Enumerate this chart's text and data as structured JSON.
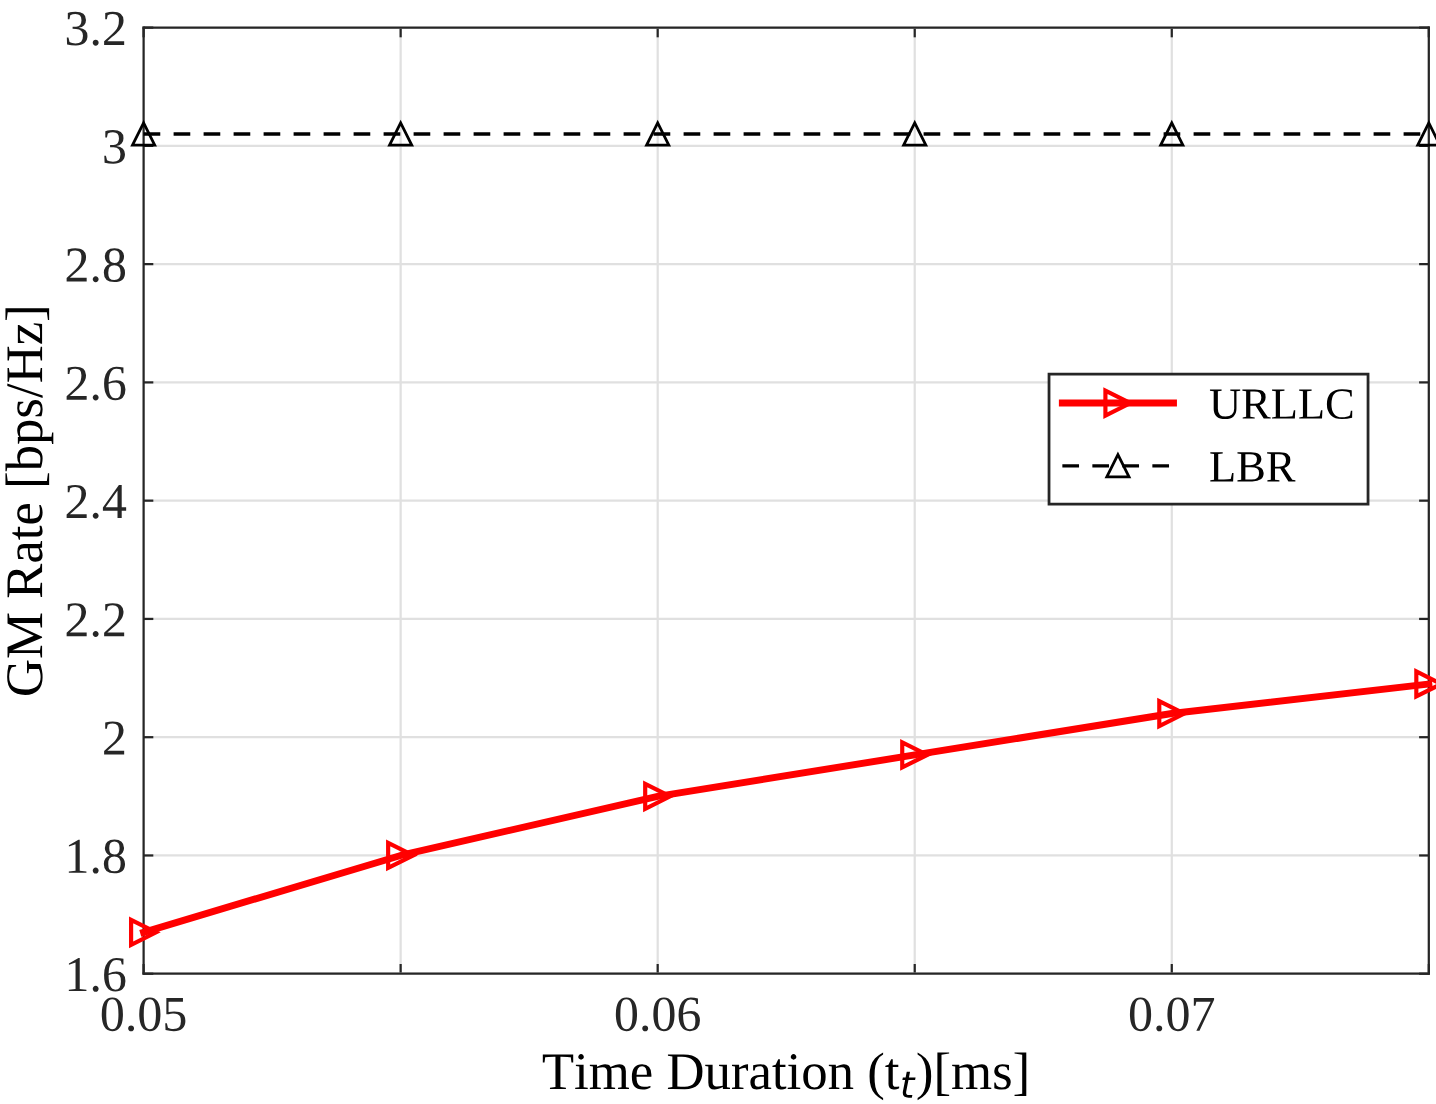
{
  "chart_data": {
    "type": "line",
    "xlabel": "Time Duration (t$_{t}$)[ms]",
    "ylabel": "GM Rate [bps/Hz]",
    "x": [
      0.05,
      0.055,
      0.06,
      0.065,
      0.07,
      0.075
    ],
    "series": [
      {
        "name": "URLLC",
        "color": "#ff0000",
        "values": [
          1.67,
          1.8,
          1.9,
          1.97,
          2.04,
          2.09
        ],
        "marker": "triangle_right",
        "line_style": "solid"
      },
      {
        "name": "LBR",
        "color": "#000000",
        "values": [
          3.02,
          3.02,
          3.02,
          3.02,
          3.02,
          3.02
        ],
        "marker": "triangle",
        "line_style": "dashed"
      }
    ],
    "xlim": [
      0.05,
      0.075
    ],
    "xticks": [
      0.05,
      {
        "value": 0.055,
        "label": null
      },
      0.06,
      {
        "value": 0.065,
        "label": null
      },
      0.07,
      {
        "value": 0.075,
        "label": null
      }
    ],
    "ylim": [
      1.6,
      3.2
    ],
    "yticks": [
      1.6,
      1.8,
      2,
      2.2,
      2.4,
      2.6,
      2.8,
      3,
      3.2
    ],
    "grid": true,
    "legend": "center right"
  }
}
